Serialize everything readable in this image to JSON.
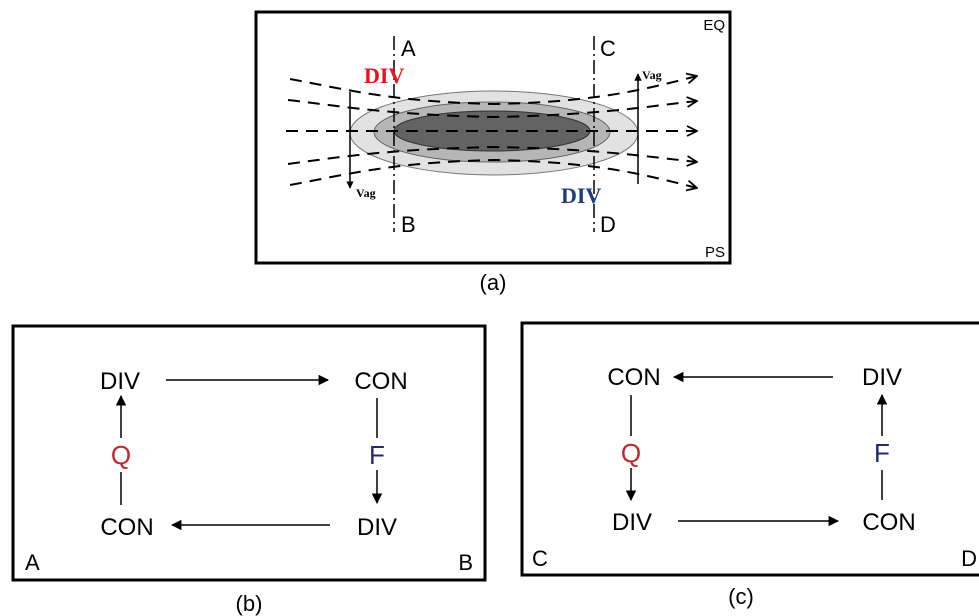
{
  "panel_a": {
    "corner_top": "EQ",
    "corner_bottom": "PS",
    "line_labels": {
      "a": "A",
      "b": "B",
      "c": "C",
      "d": "D"
    },
    "div_top": "DIV",
    "div_bottom": "DIV",
    "vag_left": "Vag",
    "vag_right": "Vag",
    "caption": "(a)"
  },
  "panel_b": {
    "div_top": "DIV",
    "con_top": "CON",
    "q": "Q",
    "f": "F",
    "con_bottom": "CON",
    "div_bottom": "DIV",
    "corner_left": "A",
    "corner_right": "B",
    "caption": "(b)"
  },
  "panel_c": {
    "con_top": "CON",
    "div_top": "DIV",
    "q": "Q",
    "f": "F",
    "div_bottom": "DIV",
    "con_bottom": "CON",
    "corner_left": "C",
    "corner_right": "D",
    "caption": "(c)"
  },
  "colors": {
    "div_red": "#e8141c",
    "div_blue": "#1f3d7a",
    "q_red": "#c0262b",
    "f_blue": "#1d2b6e"
  }
}
